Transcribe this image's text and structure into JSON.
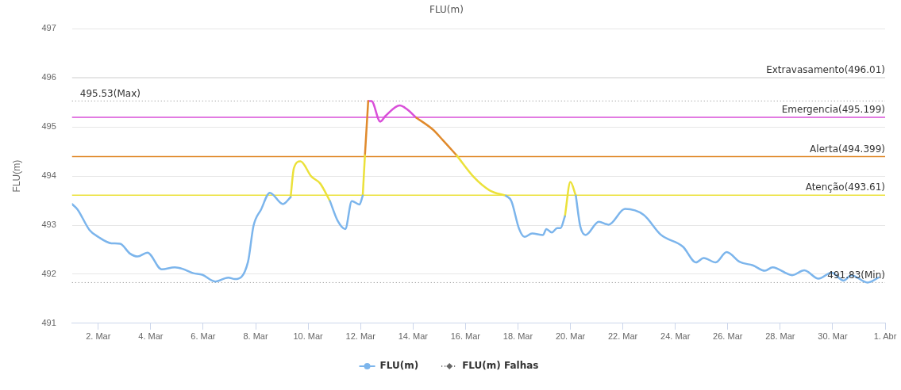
{
  "chart_data": {
    "type": "line",
    "title": "FLU(m)",
    "ylabel": "FLU(m)",
    "xlim": [
      "--03-01T00:00",
      "--04-01T00:00"
    ],
    "xticks": [
      {
        "value": "--03-02",
        "label": "2. Mar"
      },
      {
        "value": "--03-04",
        "label": "4. Mar"
      },
      {
        "value": "--03-06",
        "label": "6. Mar"
      },
      {
        "value": "--03-08",
        "label": "8. Mar"
      },
      {
        "value": "--03-10",
        "label": "10. Mar"
      },
      {
        "value": "--03-12",
        "label": "12. Mar"
      },
      {
        "value": "--03-14",
        "label": "14. Mar"
      },
      {
        "value": "--03-16",
        "label": "16. Mar"
      },
      {
        "value": "--03-18",
        "label": "18. Mar"
      },
      {
        "value": "--03-20",
        "label": "20. Mar"
      },
      {
        "value": "--03-22",
        "label": "22. Mar"
      },
      {
        "value": "--03-24",
        "label": "24. Mar"
      },
      {
        "value": "--03-26",
        "label": "26. Mar"
      },
      {
        "value": "--03-28",
        "label": "28. Mar"
      },
      {
        "value": "--03-30",
        "label": "30. Mar"
      },
      {
        "value": "--04-01",
        "label": "1. Abr"
      }
    ],
    "ylim": [
      491,
      497
    ],
    "yticks": [
      491,
      492,
      493,
      494,
      495,
      496,
      497
    ],
    "grid": "y",
    "legend": "bottom",
    "x": [
      "--03-01T00:00",
      "--03-01T05:00",
      "--03-01T16:00",
      "--03-02T00:00",
      "--03-02T12:00",
      "--03-02T20:00",
      "--03-03T05:00",
      "--03-03T12:00",
      "--03-03T21:00",
      "--03-04T10:00",
      "--03-04T22:00",
      "--03-05T05:00",
      "--03-05T15:00",
      "--03-05T23:00",
      "--03-06T11:00",
      "--03-06T23:00",
      "--03-07T05:00",
      "--03-07T17:00",
      "--03-07T22:00",
      "--03-08T05:00",
      "--03-08T13:00",
      "--03-09T01:00",
      "--03-09T08:00",
      "--03-09T11:00",
      "--03-09T17:00",
      "--03-10T03:00",
      "--03-10T11:00",
      "--03-10T20:00",
      "--03-11T03:00",
      "--03-11T10:00",
      "--03-11T16:00",
      "--03-11T23:00",
      "--03-12T02:00",
      "--03-12T04:00",
      "--03-12T07:00",
      "--03-12T10:00",
      "--03-12T18:00",
      "--03-12T23:00",
      "--03-13T12:00",
      "--03-13T18:00",
      "--03-14T03:00",
      "--03-14T18:00",
      "--03-15T03:00",
      "--03-15T16:00",
      "--03-16T08:00",
      "--03-16T22:00",
      "--03-17T13:00",
      "--03-17T18:00",
      "--03-18T01:00",
      "--03-18T06:00",
      "--03-18T13:00",
      "--03-18T23:00",
      "--03-19T02:00",
      "--03-19T07:00",
      "--03-19T12:00",
      "--03-19T15:00",
      "--03-19T19:00",
      "--03-20T00:00",
      "--03-20T05:00",
      "--03-20T09:00",
      "--03-20T14:00",
      "--03-21T02:00",
      "--03-21T11:00",
      "--03-22T02:00",
      "--03-22T19:00",
      "--03-23T11:00",
      "--03-24T07:00",
      "--03-24T19:00",
      "--03-25T02:00",
      "--03-25T13:00",
      "--03-25T23:00",
      "--03-26T11:00",
      "--03-26T23:00",
      "--03-27T10:00",
      "--03-27T17:00",
      "--03-28T11:00",
      "--03-28T22:00",
      "--03-29T11:00",
      "--03-29T23:00",
      "--03-30T10:00",
      "--03-30T17:00",
      "--03-31T08:00",
      "--03-31T18:00"
    ],
    "series": [
      {
        "name": "FLU(m)",
        "color": "#7cb5ec",
        "values": [
          493.43,
          493.32,
          492.9,
          492.76,
          492.63,
          492.62,
          492.42,
          492.36,
          492.44,
          492.1,
          492.14,
          492.11,
          492.02,
          491.99,
          491.85,
          491.93,
          491.9,
          492.25,
          492.98,
          493.32,
          493.66,
          493.43,
          493.57,
          null,
          null,
          null,
          null,
          493.49,
          493.09,
          492.92,
          493.49,
          493.42,
          493.6,
          null,
          null,
          null,
          null,
          null,
          null,
          null,
          null,
          null,
          null,
          null,
          null,
          null,
          493.6,
          493.49,
          492.93,
          492.76,
          492.83,
          492.8,
          492.92,
          492.85,
          492.94,
          492.94,
          493.18,
          null,
          493.6,
          492.98,
          492.8,
          493.07,
          493.01,
          493.33,
          493.21,
          492.8,
          492.56,
          492.24,
          492.33,
          492.24,
          492.45,
          492.25,
          492.18,
          492.07,
          492.14,
          491.98,
          492.08,
          491.91,
          492.03,
          491.87,
          491.98,
          491.83,
          491.93
        ]
      },
      {
        "color": "#ebe13a",
        "values": [
          null,
          null,
          null,
          null,
          null,
          null,
          null,
          null,
          null,
          null,
          null,
          null,
          null,
          null,
          null,
          null,
          null,
          null,
          null,
          null,
          null,
          null,
          493.57,
          494.16,
          494.3,
          493.99,
          493.85,
          493.49,
          null,
          null,
          null,
          null,
          493.6,
          494.42,
          null,
          null,
          null,
          null,
          null,
          null,
          null,
          null,
          null,
          494.42,
          493.97,
          493.71,
          493.6,
          null,
          null,
          null,
          null,
          null,
          null,
          null,
          null,
          null,
          493.18,
          493.88,
          493.6,
          null,
          null,
          null,
          null,
          null,
          null,
          null,
          null,
          null,
          null,
          null,
          null,
          null,
          null,
          null,
          null,
          null,
          null,
          null,
          null,
          null,
          null,
          null,
          null
        ]
      },
      {
        "color": "#e08a2c",
        "values": [
          null,
          null,
          null,
          null,
          null,
          null,
          null,
          null,
          null,
          null,
          null,
          null,
          null,
          null,
          null,
          null,
          null,
          null,
          null,
          null,
          null,
          null,
          null,
          null,
          null,
          null,
          null,
          null,
          null,
          null,
          null,
          null,
          null,
          494.42,
          495.53,
          null,
          null,
          null,
          null,
          null,
          495.19,
          494.95,
          494.74,
          494.42,
          null,
          null,
          null,
          null,
          null,
          null,
          null,
          null,
          null,
          null,
          null,
          null,
          null,
          null,
          null,
          null,
          null,
          null,
          null,
          null,
          null,
          null,
          null,
          null,
          null,
          null,
          null,
          null,
          null,
          null,
          null,
          null,
          null,
          null,
          null,
          null,
          null,
          null,
          null
        ]
      },
      {
        "color": "#d94fd9",
        "values": [
          null,
          null,
          null,
          null,
          null,
          null,
          null,
          null,
          null,
          null,
          null,
          null,
          null,
          null,
          null,
          null,
          null,
          null,
          null,
          null,
          null,
          null,
          null,
          null,
          null,
          null,
          null,
          null,
          null,
          null,
          null,
          null,
          null,
          null,
          495.53,
          495.53,
          495.11,
          495.23,
          495.44,
          495.37,
          495.19,
          null,
          null,
          null,
          null,
          null,
          null,
          null,
          null,
          null,
          null,
          null,
          null,
          null,
          null,
          null,
          null,
          null,
          null,
          null,
          null,
          null,
          null,
          null,
          null,
          null,
          null,
          null,
          null,
          null,
          null,
          null,
          null,
          null,
          null,
          null,
          null,
          null,
          null,
          null,
          null,
          null,
          null
        ]
      },
      {
        "name": "FLU(m) Falhas",
        "color": "#666666",
        "line_style": "dotted",
        "marker": "diamond",
        "values": [
          null,
          null,
          null,
          null,
          null,
          null,
          null,
          null,
          null,
          null,
          null,
          null,
          null,
          null,
          null,
          null,
          null,
          null,
          null,
          null,
          null,
          null,
          null,
          null,
          null,
          null,
          null,
          null,
          null,
          null,
          null,
          null,
          null,
          null,
          null,
          null,
          null,
          null,
          null,
          null,
          null,
          null,
          null,
          null,
          null,
          null,
          null,
          null,
          null,
          null,
          null,
          null,
          null,
          null,
          null,
          null,
          null,
          null,
          null,
          null,
          null,
          null,
          null,
          null,
          null,
          null,
          null,
          null,
          null,
          null,
          null,
          null,
          null,
          null,
          null,
          null,
          null,
          null,
          null,
          null,
          null,
          null,
          null
        ]
      }
    ],
    "ref_lines": [
      {
        "axis": "y",
        "value": 496.01,
        "label": "Extravasamento(496.01)",
        "color": "#e6e6e6",
        "line_style": "solid"
      },
      {
        "axis": "y",
        "value": 495.199,
        "label": "Emergencia(495.199)",
        "color": "#d94fd9",
        "line_style": "solid"
      },
      {
        "axis": "y",
        "value": 494.399,
        "label": "Alerta(494.399)",
        "color": "#e08a2c",
        "line_style": "solid"
      },
      {
        "axis": "y",
        "value": 493.61,
        "label": "Atenção(493.61)",
        "color": "#ebe13a",
        "line_style": "solid"
      },
      {
        "axis": "y",
        "value": 495.53,
        "label": "495.53(Max)",
        "color": "#888888",
        "line_style": "dotted"
      },
      {
        "axis": "y",
        "value": 491.83,
        "label": "491.83(Min)",
        "color": "#888888",
        "line_style": "dotted"
      }
    ]
  }
}
